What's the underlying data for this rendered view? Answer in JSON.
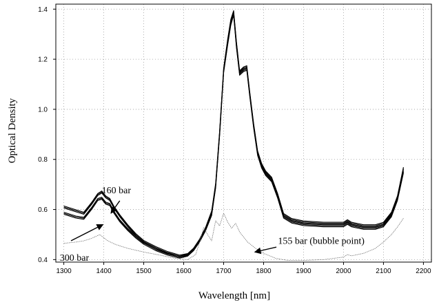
{
  "chart_data": {
    "type": "line",
    "xlabel": "Wavelength [nm]",
    "ylabel": "Optical Density",
    "xlim": [
      1280,
      2220
    ],
    "ylim": [
      0.39,
      1.42
    ],
    "grid": true,
    "x_ticks": [
      1300,
      1400,
      1500,
      1600,
      1700,
      1800,
      1900,
      2000,
      2100,
      2200
    ],
    "y_ticks": [
      0.4,
      0.6,
      0.8,
      1.0,
      1.2,
      1.4
    ],
    "x_tick_labels": [
      "1300",
      "1400",
      "1500",
      "1600",
      "1700",
      "1800",
      "1900",
      "2000",
      "2100",
      "2200"
    ],
    "y_tick_labels": [
      "0.4",
      "0.6",
      "0.8",
      "1.0",
      "1.2",
      "1.4"
    ],
    "series": [
      {
        "name": "300 bar",
        "color": "#000000",
        "x": [
          1300,
          1330,
          1350,
          1370,
          1385,
          1395,
          1405,
          1415,
          1425,
          1440,
          1460,
          1480,
          1500,
          1530,
          1560,
          1590,
          1610,
          1625,
          1640,
          1655,
          1670,
          1680,
          1690,
          1700,
          1710,
          1718,
          1725,
          1732,
          1740,
          1750,
          1758,
          1765,
          1775,
          1785,
          1795,
          1805,
          1820,
          1835,
          1850,
          1870,
          1900,
          1950,
          2000,
          2010,
          2020,
          2050,
          2080,
          2100,
          2120,
          2135,
          2150
        ],
        "y": [
          0.585,
          0.57,
          0.565,
          0.605,
          0.64,
          0.645,
          0.625,
          0.62,
          0.59,
          0.555,
          0.52,
          0.49,
          0.465,
          0.44,
          0.422,
          0.41,
          0.418,
          0.44,
          0.475,
          0.52,
          0.58,
          0.69,
          0.9,
          1.15,
          1.26,
          1.34,
          1.38,
          1.25,
          1.14,
          1.155,
          1.16,
          1.06,
          0.93,
          0.82,
          0.77,
          0.74,
          0.715,
          0.65,
          0.57,
          0.55,
          0.54,
          0.535,
          0.535,
          0.545,
          0.535,
          0.525,
          0.525,
          0.535,
          0.575,
          0.64,
          0.75
        ]
      },
      {
        "name": "160 bar",
        "color": "#000000",
        "x": [
          1300,
          1330,
          1350,
          1370,
          1385,
          1395,
          1405,
          1415,
          1425,
          1440,
          1460,
          1480,
          1500,
          1530,
          1560,
          1590,
          1610,
          1625,
          1640,
          1655,
          1670,
          1680,
          1690,
          1700,
          1710,
          1718,
          1725,
          1732,
          1740,
          1750,
          1758,
          1765,
          1775,
          1785,
          1795,
          1805,
          1820,
          1835,
          1850,
          1870,
          1900,
          1950,
          2000,
          2010,
          2020,
          2050,
          2080,
          2100,
          2120,
          2135,
          2150
        ],
        "y": [
          0.61,
          0.595,
          0.585,
          0.625,
          0.66,
          0.67,
          0.65,
          0.64,
          0.61,
          0.575,
          0.535,
          0.5,
          0.472,
          0.448,
          0.428,
          0.414,
          0.42,
          0.442,
          0.478,
          0.525,
          0.59,
          0.7,
          0.91,
          1.16,
          1.275,
          1.355,
          1.39,
          1.265,
          1.15,
          1.165,
          1.17,
          1.07,
          0.94,
          0.83,
          0.78,
          0.75,
          0.725,
          0.66,
          0.58,
          0.56,
          0.55,
          0.545,
          0.545,
          0.555,
          0.545,
          0.535,
          0.535,
          0.545,
          0.585,
          0.65,
          0.765
        ]
      },
      {
        "name": "155 bar (bubble point)",
        "color": "#707070",
        "x": [
          1300,
          1330,
          1350,
          1370,
          1390,
          1410,
          1430,
          1460,
          1500,
          1540,
          1580,
          1610,
          1630,
          1640,
          1650,
          1660,
          1670,
          1680,
          1690,
          1700,
          1710,
          1720,
          1730,
          1740,
          1760,
          1780,
          1800,
          1830,
          1860,
          1900,
          1950,
          2000,
          2010,
          2020,
          2050,
          2080,
          2100,
          2120,
          2135,
          2150
        ],
        "y": [
          0.465,
          0.47,
          0.475,
          0.485,
          0.5,
          0.475,
          0.46,
          0.445,
          0.43,
          0.418,
          0.405,
          0.4,
          0.42,
          0.47,
          0.528,
          0.5,
          0.475,
          0.555,
          0.535,
          0.585,
          0.55,
          0.525,
          0.545,
          0.51,
          0.47,
          0.445,
          0.425,
          0.405,
          0.397,
          0.397,
          0.4,
          0.41,
          0.42,
          0.415,
          0.425,
          0.445,
          0.47,
          0.5,
          0.53,
          0.565
        ]
      }
    ],
    "annotations": [
      {
        "text": "160 bar",
        "text_x": 1395,
        "text_y": 0.665,
        "arrow_from": [
          1440,
          0.635
        ],
        "arrow_to": [
          1418,
          0.585
        ]
      },
      {
        "text": "300 bar",
        "text_x": 1290,
        "text_y": 0.395,
        "arrow_from": [
          1318,
          0.475
        ],
        "arrow_to": [
          1398,
          0.54
        ]
      },
      {
        "text": "155 bar (bubble point)",
        "text_x": 1836,
        "text_y": 0.463,
        "arrow_from": [
          1832,
          0.45
        ],
        "arrow_to": [
          1778,
          0.43
        ]
      }
    ]
  }
}
